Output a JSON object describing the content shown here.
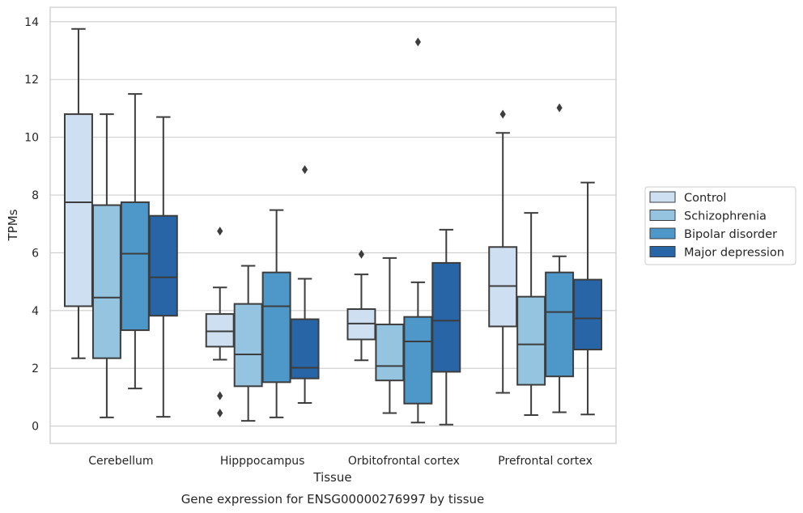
{
  "caption": "Gene expression for ENSG00000276997 by tissue",
  "chart_data": {
    "type": "box",
    "xlabel": "Tissue",
    "ylabel": "TPMs",
    "ylim": [
      -0.6,
      14.5
    ],
    "yticks": [
      0,
      2,
      4,
      6,
      8,
      10,
      12,
      14
    ],
    "grid": "horizontal",
    "legend_position": "right",
    "categories": [
      "Cerebellum",
      "Hipppocampus",
      "Orbitofrontal cortex",
      "Prefrontal cortex"
    ],
    "series": [
      {
        "name": "Control",
        "color": "#cddff0",
        "boxes": [
          {
            "whisker_low": 2.35,
            "q1": 4.15,
            "median": 7.75,
            "q3": 10.8,
            "whisker_high": 13.75,
            "outliers": []
          },
          {
            "whisker_low": 2.3,
            "q1": 2.75,
            "median": 3.28,
            "q3": 3.88,
            "whisker_high": 4.8,
            "outliers": [
              6.75,
              1.05,
              0.45
            ]
          },
          {
            "whisker_low": 2.28,
            "q1": 3.0,
            "median": 3.55,
            "q3": 4.05,
            "whisker_high": 5.25,
            "outliers": [
              5.95
            ]
          },
          {
            "whisker_low": 1.15,
            "q1": 3.45,
            "median": 4.85,
            "q3": 6.2,
            "whisker_high": 10.15,
            "outliers": [
              10.8
            ]
          }
        ]
      },
      {
        "name": "Schizophrenia",
        "color": "#94c4df",
        "boxes": [
          {
            "whisker_low": 0.3,
            "q1": 2.35,
            "median": 4.45,
            "q3": 7.65,
            "whisker_high": 10.8,
            "outliers": []
          },
          {
            "whisker_low": 0.18,
            "q1": 1.38,
            "median": 2.48,
            "q3": 4.23,
            "whisker_high": 5.55,
            "outliers": []
          },
          {
            "whisker_low": 0.45,
            "q1": 1.58,
            "median": 2.08,
            "q3": 3.52,
            "whisker_high": 5.82,
            "outliers": []
          },
          {
            "whisker_low": 0.38,
            "q1": 1.43,
            "median": 2.83,
            "q3": 4.48,
            "whisker_high": 7.38,
            "outliers": []
          }
        ]
      },
      {
        "name": "Bipolar disorder",
        "color": "#4d97c9",
        "boxes": [
          {
            "whisker_low": 1.3,
            "q1": 3.32,
            "median": 5.97,
            "q3": 7.75,
            "whisker_high": 11.5,
            "outliers": []
          },
          {
            "whisker_low": 0.3,
            "q1": 1.52,
            "median": 4.15,
            "q3": 5.32,
            "whisker_high": 7.48,
            "outliers": []
          },
          {
            "whisker_low": 0.12,
            "q1": 0.78,
            "median": 2.93,
            "q3": 3.78,
            "whisker_high": 4.98,
            "outliers": [
              13.3
            ]
          },
          {
            "whisker_low": 0.48,
            "q1": 1.72,
            "median": 3.95,
            "q3": 5.32,
            "whisker_high": 5.88,
            "outliers": [
              11.02
            ]
          }
        ]
      },
      {
        "name": "Major depression",
        "color": "#2865a6",
        "boxes": [
          {
            "whisker_low": 0.32,
            "q1": 3.82,
            "median": 5.15,
            "q3": 7.28,
            "whisker_high": 10.7,
            "outliers": []
          },
          {
            "whisker_low": 0.8,
            "q1": 1.65,
            "median": 2.02,
            "q3": 3.7,
            "whisker_high": 5.1,
            "outliers": [
              8.88
            ]
          },
          {
            "whisker_low": 0.05,
            "q1": 1.88,
            "median": 3.65,
            "q3": 5.65,
            "whisker_high": 6.8,
            "outliers": []
          },
          {
            "whisker_low": 0.4,
            "q1": 2.65,
            "median": 3.73,
            "q3": 5.07,
            "whisker_high": 8.43,
            "outliers": []
          }
        ]
      }
    ]
  }
}
